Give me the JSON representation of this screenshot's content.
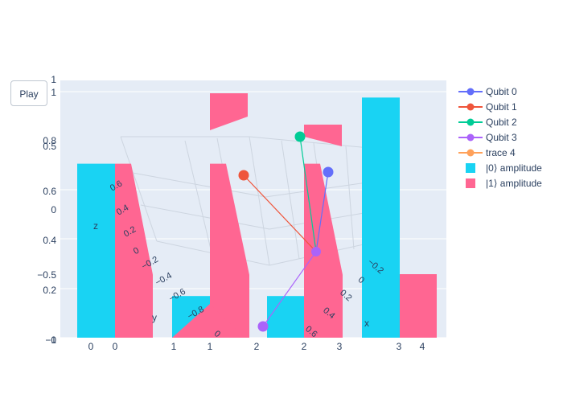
{
  "controls": {
    "play_label": "Play"
  },
  "colors": {
    "plot_bg": "#e5ecf6",
    "amp0": "#19d3f3",
    "amp1": "#ff6692",
    "qubit0": "#636efa",
    "qubit1": "#ef553b",
    "qubit2": "#00cc96",
    "qubit3": "#ab63fa",
    "trace4": "#ffa15a"
  },
  "chart_data": [
    {
      "type": "scatter3d",
      "traces": [
        {
          "name": "Qubit 0"
        },
        {
          "name": "Qubit 1"
        },
        {
          "name": "Qubit 2"
        },
        {
          "name": "Qubit 3"
        },
        {
          "name": "trace 4"
        }
      ],
      "axes": {
        "x": {
          "title": "x",
          "ticks": [
            "−0.2",
            "0",
            "0.2",
            "0.4",
            "0.6"
          ]
        },
        "y": {
          "title": "y",
          "ticks": [
            "0.6",
            "0.4",
            "0.2",
            "0",
            "−0.2",
            "−0.4",
            "−0.6",
            "−0.8"
          ]
        },
        "z": {
          "title": "z",
          "ticks": [
            "0.5",
            "0",
            "−0.5",
            "−1",
            "1"
          ]
        }
      }
    },
    {
      "type": "bar",
      "legend": [
        "|0⟩ amplitude",
        "|1⟩ amplitude"
      ],
      "panels": [
        {
          "categories": [
            "0",
            "1"
          ],
          "amp0": [
            0.71,
            0.17
          ],
          "amp1": [
            0.71,
            0.17
          ]
        },
        {
          "categories": [
            "1",
            "2"
          ],
          "amp0": [
            0.17,
            0.17
          ],
          "amp1": [
            0.71,
            0.71
          ]
        },
        {
          "categories": [
            "2",
            "3"
          ],
          "amp0": [
            0.17,
            0.98
          ],
          "amp1": [
            0.71,
            0.71
          ]
        },
        {
          "categories": [
            "3",
            "4"
          ],
          "amp0": [
            0.98,
            0.2
          ],
          "amp1": [
            0.2,
            0.26
          ]
        }
      ],
      "ylim": [
        0,
        1.05
      ],
      "yticks": [
        "0",
        "0.2",
        "0.4",
        "0.6",
        "0.8",
        "1"
      ]
    }
  ]
}
